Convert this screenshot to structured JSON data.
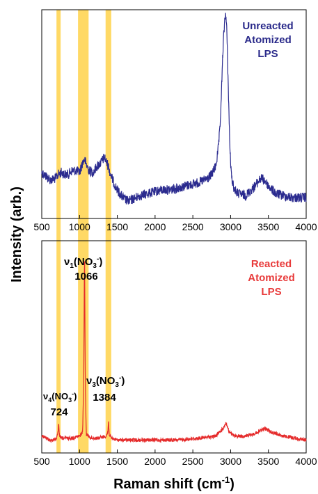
{
  "chart_data": [
    {
      "type": "line",
      "panel": "top",
      "legend": [
        "Unreacted",
        "Atomized",
        "LPS"
      ],
      "legend_color": "#2a2a8a",
      "line_color": "#2b2b8f",
      "xlim": [
        500,
        4000
      ],
      "xticks": [
        500,
        1000,
        1500,
        2000,
        2500,
        3000,
        3500,
        4000
      ],
      "xtick_labels": [
        "500",
        "1000",
        "1500",
        "2000",
        "2500",
        "3000",
        "3500",
        "4000"
      ],
      "y_ticks_shown": false,
      "series": [
        {
          "x": [
            500,
            560,
            620,
            680,
            720,
            760,
            800,
            850,
            900,
            950,
            1000,
            1040,
            1066,
            1090,
            1130,
            1180,
            1230,
            1280,
            1330,
            1360,
            1384,
            1410,
            1450,
            1500,
            1550,
            1600,
            1650,
            1700,
            1800,
            1900,
            2000,
            2100,
            2200,
            2300,
            2400,
            2500,
            2600,
            2700,
            2750,
            2800,
            2830,
            2860,
            2880,
            2900,
            2920,
            2935,
            2950,
            2970,
            2990,
            3010,
            3050,
            3100,
            3200,
            3300,
            3400,
            3450,
            3500,
            3600,
            3700,
            3800,
            3900,
            4000
          ],
          "y": [
            0.17,
            0.15,
            0.13,
            0.14,
            0.16,
            0.17,
            0.16,
            0.16,
            0.18,
            0.18,
            0.17,
            0.22,
            0.24,
            0.21,
            0.18,
            0.17,
            0.2,
            0.22,
            0.25,
            0.22,
            0.2,
            0.16,
            0.12,
            0.08,
            0.05,
            0.03,
            0.02,
            0.03,
            0.05,
            0.06,
            0.07,
            0.08,
            0.08,
            0.09,
            0.1,
            0.11,
            0.12,
            0.14,
            0.16,
            0.2,
            0.27,
            0.4,
            0.6,
            0.82,
            0.95,
            1.0,
            0.9,
            0.6,
            0.3,
            0.15,
            0.08,
            0.06,
            0.05,
            0.09,
            0.14,
            0.13,
            0.1,
            0.06,
            0.05,
            0.04,
            0.04,
            0.04
          ]
        }
      ]
    },
    {
      "type": "line",
      "panel": "bottom",
      "legend": [
        "Reacted",
        "Atomized",
        "LPS"
      ],
      "legend_color": "#e83a3a",
      "line_color": "#e52b2b",
      "xlim": [
        500,
        4000
      ],
      "xticks": [
        500,
        1000,
        1500,
        2000,
        2500,
        3000,
        3500,
        4000
      ],
      "xtick_labels": [
        "500",
        "1000",
        "1500",
        "2000",
        "2500",
        "3000",
        "3500",
        "4000"
      ],
      "y_ticks_shown": false,
      "xlabel": "Raman shift (cm",
      "xlabel_sup": "-1",
      "xlabel_end": ")",
      "series": [
        {
          "x": [
            500,
            560,
            600,
            650,
            700,
            715,
            724,
            733,
            750,
            800,
            900,
            1000,
            1040,
            1055,
            1066,
            1077,
            1090,
            1150,
            1250,
            1350,
            1375,
            1384,
            1393,
            1420,
            1500,
            1700,
            2000,
            2300,
            2600,
            2800,
            2900,
            2940,
            2980,
            3050,
            3200,
            3300,
            3450,
            3550,
            3700,
            3850,
            4000
          ],
          "y": [
            0.04,
            0.03,
            0.02,
            0.02,
            0.03,
            0.06,
            0.1,
            0.05,
            0.03,
            0.03,
            0.03,
            0.04,
            0.06,
            0.3,
            1.0,
            0.3,
            0.05,
            0.03,
            0.03,
            0.04,
            0.06,
            0.12,
            0.05,
            0.03,
            0.02,
            0.02,
            0.02,
            0.02,
            0.03,
            0.04,
            0.08,
            0.11,
            0.06,
            0.04,
            0.04,
            0.05,
            0.08,
            0.06,
            0.04,
            0.03,
            0.02
          ]
        }
      ],
      "annotations": [
        {
          "key": "nu1",
          "species": "ν",
          "sub": "1",
          "formula": "(NO",
          "formula_sub": "3",
          "formula_sup": "-",
          "formula_end": ")",
          "value": "1066"
        },
        {
          "key": "nu4",
          "species": "ν",
          "sub": "4",
          "formula": "(NO",
          "formula_sub": "3",
          "formula_sup": "-",
          "formula_end": ")",
          "value": "724"
        },
        {
          "key": "nu3",
          "species": "ν",
          "sub": "3",
          "formula": "(NO",
          "formula_sub": "3",
          "formula_sup": "-",
          "formula_end": ")",
          "value": "1384"
        }
      ]
    }
  ],
  "highlight_bands": [
    {
      "x0": 695,
      "x1": 750
    },
    {
      "x0": 980,
      "x1": 1120
    },
    {
      "x0": 1345,
      "x1": 1420
    }
  ],
  "band_color": "#ffd24a",
  "ylabel": "Intensity (arb.)"
}
